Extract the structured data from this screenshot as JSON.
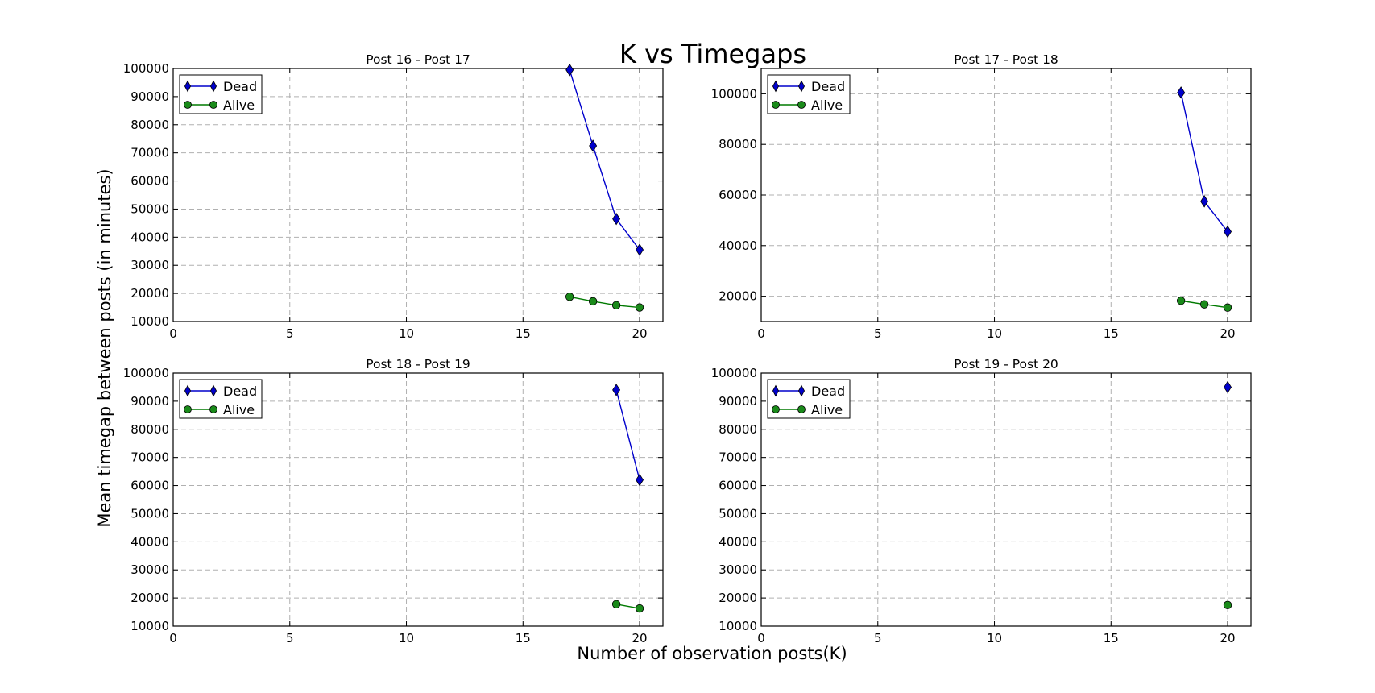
{
  "figure": {
    "title": "K vs Timegaps",
    "xlabel": "Number of observation posts(K)",
    "ylabel": "Mean timegap between posts (in minutes)"
  },
  "colors": {
    "dead": "#0000cc",
    "alive": "#007a00",
    "alive_fill": "#1a8a1a",
    "grid": "#b0b0b0"
  },
  "chart_data": [
    {
      "type": "line",
      "title": "Post 16 - Post 17",
      "xlim": [
        0,
        21
      ],
      "ylim": [
        10000,
        100000
      ],
      "xticks": [
        0,
        5,
        10,
        15,
        20
      ],
      "yticks": [
        10000,
        20000,
        30000,
        40000,
        50000,
        60000,
        70000,
        80000,
        90000,
        100000
      ],
      "grid": true,
      "legend": "top-left",
      "series": [
        {
          "name": "Dead",
          "marker": "diamond",
          "x": [
            17,
            18,
            19,
            20
          ],
          "y": [
            99500,
            72500,
            46500,
            35500
          ]
        },
        {
          "name": "Alive",
          "marker": "circle",
          "x": [
            17,
            18,
            19,
            20
          ],
          "y": [
            18800,
            17200,
            15800,
            15000
          ]
        }
      ]
    },
    {
      "type": "line",
      "title": "Post 17 - Post 18",
      "xlim": [
        0,
        21
      ],
      "ylim": [
        10000,
        110000
      ],
      "xticks": [
        0,
        5,
        10,
        15,
        20
      ],
      "yticks": [
        20000,
        40000,
        60000,
        80000,
        100000
      ],
      "grid": true,
      "legend": "top-left",
      "series": [
        {
          "name": "Dead",
          "marker": "diamond",
          "x": [
            18,
            19,
            20
          ],
          "y": [
            100500,
            57500,
            45500
          ]
        },
        {
          "name": "Alive",
          "marker": "circle",
          "x": [
            18,
            19,
            20
          ],
          "y": [
            18200,
            16800,
            15500
          ]
        }
      ]
    },
    {
      "type": "line",
      "title": "Post 18 - Post 19",
      "xlim": [
        0,
        21
      ],
      "ylim": [
        10000,
        100000
      ],
      "xticks": [
        0,
        5,
        10,
        15,
        20
      ],
      "yticks": [
        10000,
        20000,
        30000,
        40000,
        50000,
        60000,
        70000,
        80000,
        90000,
        100000
      ],
      "grid": true,
      "legend": "top-left",
      "series": [
        {
          "name": "Dead",
          "marker": "diamond",
          "x": [
            19,
            20
          ],
          "y": [
            94000,
            62000
          ]
        },
        {
          "name": "Alive",
          "marker": "circle",
          "x": [
            19,
            20
          ],
          "y": [
            17800,
            16300
          ]
        }
      ]
    },
    {
      "type": "line",
      "title": "Post 19 - Post 20",
      "xlim": [
        0,
        21
      ],
      "ylim": [
        10000,
        100000
      ],
      "xticks": [
        0,
        5,
        10,
        15,
        20
      ],
      "yticks": [
        10000,
        20000,
        30000,
        40000,
        50000,
        60000,
        70000,
        80000,
        90000,
        100000
      ],
      "grid": true,
      "legend": "top-left",
      "series": [
        {
          "name": "Dead",
          "marker": "diamond",
          "x": [
            20
          ],
          "y": [
            95000
          ]
        },
        {
          "name": "Alive",
          "marker": "circle",
          "x": [
            20
          ],
          "y": [
            17500
          ]
        }
      ]
    }
  ]
}
